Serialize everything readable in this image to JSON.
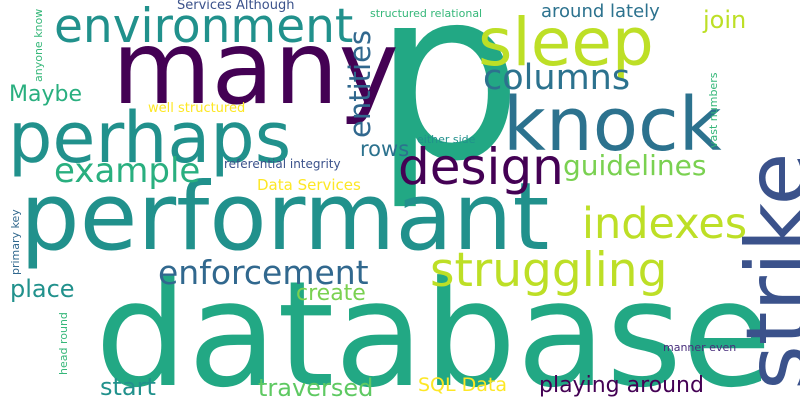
{
  "words": [
    {
      "text": "database",
      "color": "#22a884",
      "orientation": "horizontal"
    },
    {
      "text": "p",
      "color": "#22a884",
      "orientation": "horizontal"
    },
    {
      "text": "performant",
      "color": "#21918c",
      "orientation": "horizontal"
    },
    {
      "text": "strike",
      "color": "#3b528b",
      "orientation": "vertical"
    },
    {
      "text": "many",
      "color": "#440154",
      "orientation": "horizontal"
    },
    {
      "text": "perhaps",
      "color": "#21918c",
      "orientation": "horizontal"
    },
    {
      "text": "knock",
      "color": "#2c728e",
      "orientation": "horizontal"
    },
    {
      "text": "sleep",
      "color": "#bddf26",
      "orientation": "horizontal"
    },
    {
      "text": "environment",
      "color": "#21918c",
      "orientation": "horizontal"
    },
    {
      "text": "struggling",
      "color": "#bddf26",
      "orientation": "horizontal"
    },
    {
      "text": "design",
      "color": "#440154",
      "orientation": "horizontal"
    },
    {
      "text": "columns",
      "color": "#2c728e",
      "orientation": "horizontal"
    },
    {
      "text": "indexes",
      "color": "#bddf26",
      "orientation": "horizontal"
    },
    {
      "text": "enforcement",
      "color": "#31688e",
      "orientation": "horizontal"
    },
    {
      "text": "example",
      "color": "#29af7f",
      "orientation": "horizontal"
    },
    {
      "text": "entities",
      "color": "#31688e",
      "orientation": "vertical"
    },
    {
      "text": "guidelines",
      "color": "#7ad151",
      "orientation": "horizontal"
    },
    {
      "text": "rows",
      "color": "#2c728e",
      "orientation": "horizontal"
    },
    {
      "text": "join",
      "color": "#bddf26",
      "orientation": "horizontal"
    },
    {
      "text": "Maybe",
      "color": "#29af7f",
      "orientation": "horizontal"
    },
    {
      "text": "around lately",
      "color": "#2c728e",
      "orientation": "horizontal"
    },
    {
      "text": "playing around",
      "color": "#440154",
      "orientation": "horizontal"
    },
    {
      "text": "traversed",
      "color": "#5ec962",
      "orientation": "horizontal"
    },
    {
      "text": "create",
      "color": "#7ad151",
      "orientation": "horizontal"
    },
    {
      "text": "place",
      "color": "#21918c",
      "orientation": "horizontal"
    },
    {
      "text": "start",
      "color": "#21918c",
      "orientation": "horizontal"
    },
    {
      "text": "SQL Data",
      "color": "#fde725",
      "orientation": "horizontal"
    },
    {
      "text": "Data Services",
      "color": "#fde725",
      "orientation": "horizontal"
    },
    {
      "text": "Services Although",
      "color": "#3b528b",
      "orientation": "horizontal"
    },
    {
      "text": "structured relational",
      "color": "#35b779",
      "orientation": "horizontal"
    },
    {
      "text": "referential integrity",
      "color": "#3b528b",
      "orientation": "horizontal"
    },
    {
      "text": "either side",
      "color": "#21918c",
      "orientation": "horizontal"
    },
    {
      "text": "well structured",
      "color": "#fde725",
      "orientation": "horizontal"
    },
    {
      "text": "vast numbers",
      "color": "#35b779",
      "orientation": "vertical"
    },
    {
      "text": "anyone know",
      "color": "#35b779",
      "orientation": "vertical"
    },
    {
      "text": "primary key",
      "color": "#31688e",
      "orientation": "vertical"
    },
    {
      "text": "head round",
      "color": "#35b779",
      "orientation": "vertical"
    },
    {
      "text": "manner even",
      "color": "#472d7b",
      "orientation": "horizontal"
    }
  ]
}
